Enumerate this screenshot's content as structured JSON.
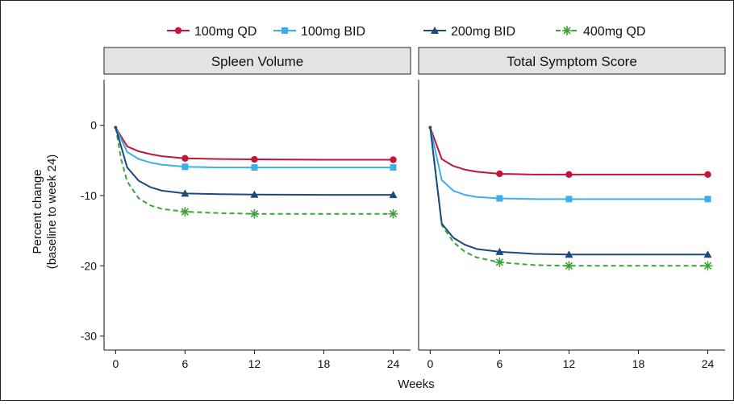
{
  "chart_data": {
    "type": "line",
    "legend": {
      "placement": "top",
      "entries": [
        {
          "name": "100mg QD",
          "color": "#c0163c",
          "marker": "circle",
          "dash": false
        },
        {
          "name": "100mg BID",
          "color": "#3daee6",
          "marker": "square",
          "dash": false
        },
        {
          "name": "200mg BID",
          "color": "#1b4a7d",
          "marker": "triangle",
          "dash": false
        },
        {
          "name": "400mg QD",
          "color": "#3aa535",
          "marker": "asterisk",
          "dash": true
        }
      ]
    },
    "xlabel": "Weeks",
    "ylabel_line1": "Percent change",
    "ylabel_line2": "(baseline to week 24)",
    "xlim": [
      -1,
      25.5
    ],
    "ylim": [
      -32,
      6.5
    ],
    "x_ticks": [
      0,
      6,
      12,
      18,
      24
    ],
    "y_ticks": [
      0,
      -10,
      -20,
      -30
    ],
    "grid": false,
    "panels": [
      {
        "title": "Spleen Volume",
        "series": [
          {
            "name": "100mg QD",
            "x": [
              0,
              1,
              2,
              3,
              4,
              6,
              9,
              12,
              18,
              24
            ],
            "y": [
              -0.3,
              -3.0,
              -3.7,
              -4.1,
              -4.4,
              -4.7,
              -4.8,
              -4.85,
              -4.9,
              -4.9
            ],
            "markers_x": [
              6,
              12,
              24
            ],
            "markers_y": [
              -4.7,
              -4.85,
              -4.9
            ]
          },
          {
            "name": "100mg BID",
            "x": [
              0,
              1,
              2,
              3,
              4,
              6,
              9,
              12,
              18,
              24
            ],
            "y": [
              -0.3,
              -3.8,
              -4.8,
              -5.3,
              -5.6,
              -5.9,
              -6.0,
              -6.0,
              -6.0,
              -6.0
            ],
            "markers_x": [
              6,
              12,
              24
            ],
            "markers_y": [
              -5.9,
              -6.0,
              -6.0
            ]
          },
          {
            "name": "200mg BID",
            "x": [
              0,
              1,
              2,
              3,
              4,
              6,
              9,
              12,
              18,
              24
            ],
            "y": [
              -0.3,
              -6.0,
              -7.9,
              -8.8,
              -9.3,
              -9.7,
              -9.8,
              -9.85,
              -9.9,
              -9.9
            ],
            "markers_x": [
              6,
              12,
              24
            ],
            "markers_y": [
              -9.7,
              -9.85,
              -9.9
            ]
          },
          {
            "name": "400mg QD",
            "x": [
              0,
              0.5,
              1,
              2,
              3,
              4,
              6,
              9,
              12,
              18,
              24
            ],
            "y": [
              -0.3,
              -5.0,
              -8.0,
              -10.4,
              -11.4,
              -11.9,
              -12.3,
              -12.5,
              -12.6,
              -12.6,
              -12.6
            ],
            "markers_x": [
              6,
              12,
              24
            ],
            "markers_y": [
              -12.3,
              -12.6,
              -12.6
            ]
          }
        ]
      },
      {
        "title": "Total Symptom Score",
        "series": [
          {
            "name": "100mg QD",
            "x": [
              0,
              1,
              2,
              3,
              4,
              6,
              9,
              12,
              18,
              24
            ],
            "y": [
              -0.3,
              -4.8,
              -5.8,
              -6.3,
              -6.6,
              -6.9,
              -7.0,
              -7.0,
              -7.0,
              -7.0
            ],
            "markers_x": [
              6,
              12,
              24
            ],
            "markers_y": [
              -6.9,
              -7.0,
              -7.0
            ]
          },
          {
            "name": "100mg BID",
            "x": [
              0,
              1,
              2,
              3,
              4,
              6,
              9,
              12,
              18,
              24
            ],
            "y": [
              -0.3,
              -7.8,
              -9.3,
              -9.9,
              -10.2,
              -10.4,
              -10.5,
              -10.5,
              -10.5,
              -10.5
            ],
            "markers_x": [
              6,
              12,
              24
            ],
            "markers_y": [
              -10.4,
              -10.5,
              -10.5
            ]
          },
          {
            "name": "200mg BID",
            "x": [
              0,
              1,
              2,
              3,
              4,
              6,
              9,
              12,
              18,
              24
            ],
            "y": [
              -0.3,
              -14.0,
              -16.0,
              -17.0,
              -17.6,
              -18.0,
              -18.3,
              -18.4,
              -18.4,
              -18.4
            ],
            "markers_x": [
              6,
              12,
              24
            ],
            "markers_y": [
              -18.0,
              -18.4,
              -18.4
            ]
          },
          {
            "name": "400mg QD",
            "x": [
              0,
              1,
              2,
              3,
              4,
              6,
              9,
              12,
              18,
              24
            ],
            "y": [
              -0.3,
              -14.2,
              -16.6,
              -18.0,
              -18.8,
              -19.5,
              -19.9,
              -20.0,
              -20.0,
              -20.0
            ],
            "markers_x": [
              6,
              12,
              24
            ],
            "markers_y": [
              -19.5,
              -20.0,
              -20.0
            ]
          }
        ]
      }
    ]
  }
}
